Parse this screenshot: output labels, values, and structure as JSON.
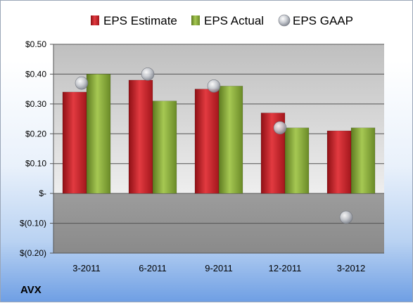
{
  "chart_data": {
    "type": "bar",
    "ticker": "AVX",
    "categories": [
      "3-2011",
      "6-2011",
      "9-2011",
      "12-2011",
      "3-2012"
    ],
    "series": [
      {
        "name": "EPS Estimate",
        "kind": "bar",
        "color": "#d9232a",
        "values": [
          0.34,
          0.38,
          0.35,
          0.27,
          0.21
        ]
      },
      {
        "name": "EPS Actual",
        "kind": "bar",
        "color": "#8fb23b",
        "values": [
          0.4,
          0.31,
          0.36,
          0.22,
          0.22
        ]
      },
      {
        "name": "EPS GAAP",
        "kind": "marker",
        "color": "#b8bcc4",
        "values": [
          0.37,
          0.4,
          0.36,
          0.22,
          -0.08
        ]
      }
    ],
    "ylim": [
      -0.2,
      0.5
    ],
    "yticks": [
      {
        "value": 0.5,
        "label": "$0.50"
      },
      {
        "value": 0.4,
        "label": "$0.40"
      },
      {
        "value": 0.3,
        "label": "$0.30"
      },
      {
        "value": 0.2,
        "label": "$0.20"
      },
      {
        "value": 0.1,
        "label": "$0.10"
      },
      {
        "value": 0,
        "label": "$-"
      },
      {
        "value": -0.1,
        "label": "$(0.10)"
      },
      {
        "value": -0.2,
        "label": "$(0.20)"
      }
    ],
    "grid": true,
    "legend": "top"
  }
}
